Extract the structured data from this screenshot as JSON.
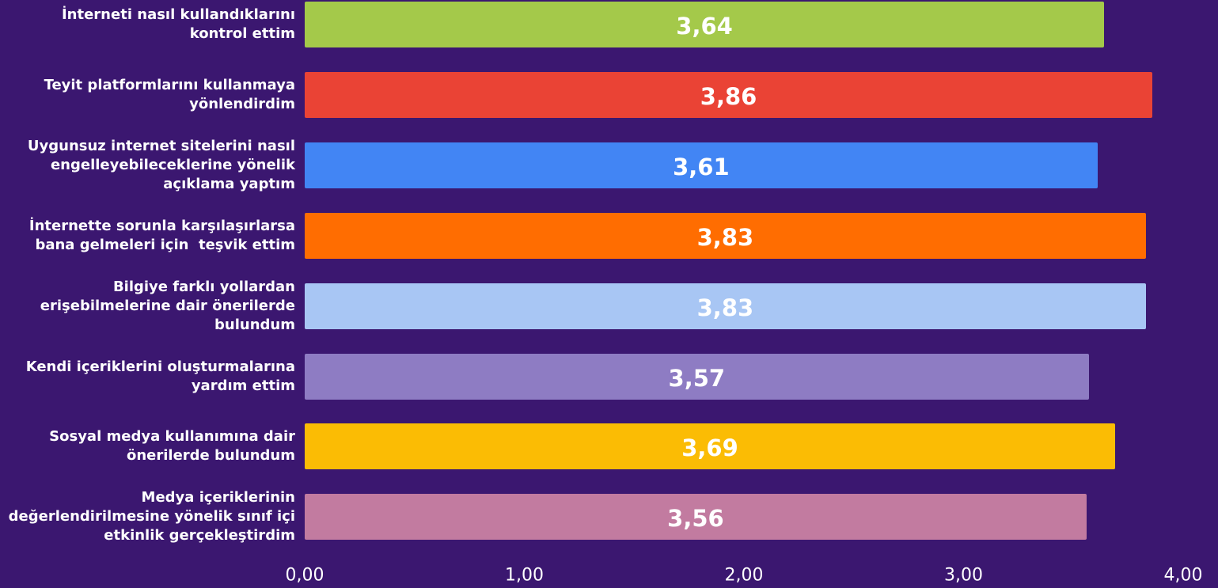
{
  "chart_data": {
    "type": "bar",
    "orientation": "horizontal",
    "categories": [
      "İnterneti nasıl kullandıklarını\nkontrol ettim",
      "Teyit platformlarını kullanmaya\nyönlendirdim",
      "Uygunsuz internet sitelerini nasıl\nengelleyebileceklerine yönelik\naçıklama yaptım",
      "İnternette sorunla karşılaşırlarsa\nbana gelmeleri için  teşvik ettim",
      "Bilgiye farklı yollardan\nerişebilmelerine dair önerilerde\nbulundum",
      "Kendi içeriklerini oluşturmalarına\nyardım ettim",
      "Sosyal medya kullanımına dair\nönerilerde bulundum",
      "Medya içeriklerinin\ndeğerlendirilmesine yönelik sınıf içi\netkinlik gerçekleştirdim"
    ],
    "values": [
      3.64,
      3.86,
      3.61,
      3.83,
      3.83,
      3.57,
      3.69,
      3.56
    ],
    "value_labels": [
      "3,64",
      "3,86",
      "3,61",
      "3,83",
      "3,83",
      "3,57",
      "3,69",
      "3,56"
    ],
    "colors": [
      "#a4c94a",
      "#ea4335",
      "#4285f4",
      "#ff6d01",
      "#a8c6f4",
      "#8e7cc3",
      "#fbbc04",
      "#c27ba0"
    ],
    "xlim": [
      0,
      4
    ],
    "xticks": [
      {
        "value": 0,
        "label": "0,00"
      },
      {
        "value": 1,
        "label": "1,00"
      },
      {
        "value": 2,
        "label": "2,00"
      },
      {
        "value": 3,
        "label": "3,00"
      },
      {
        "value": 4,
        "label": "4,00"
      }
    ],
    "grid": false
  }
}
